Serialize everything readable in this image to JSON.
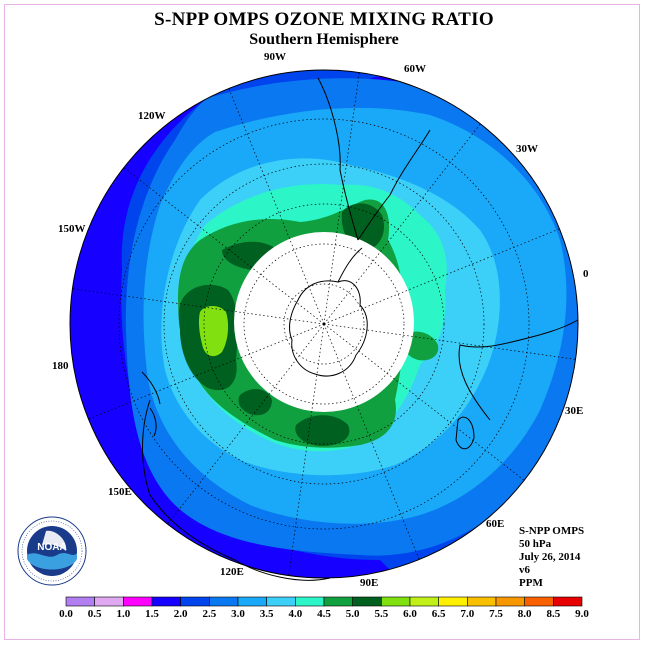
{
  "title": "S-NPP OMPS OZONE MIXING RATIO",
  "subtitle": "Southern Hemisphere",
  "longitude_labels": [
    "90W",
    "60W",
    "120W",
    "30W",
    "150W",
    "0",
    "180",
    "30E",
    "150E",
    "60E",
    "120E",
    "90E"
  ],
  "info": {
    "instrument": "S-NPP OMPS",
    "pressure": "50 hPa",
    "date": "July 26, 2014",
    "version": "v6",
    "units": "PPM"
  },
  "logo": {
    "text": "NOAA",
    "ring_text": "NATIONAL OCEANIC AND ATMOSPHERIC ADMINISTRATION U.S. DEPARTMENT OF COMMERCE"
  },
  "colorbar": {
    "labels": [
      "0.0",
      "0.5",
      "1.0",
      "1.5",
      "2.0",
      "2.5",
      "3.0",
      "3.5",
      "4.0",
      "4.5",
      "5.0",
      "5.5",
      "6.0",
      "6.5",
      "7.0",
      "7.5",
      "8.0",
      "8.5",
      "9.0"
    ],
    "colors": [
      "#b27ff0",
      "#e0a8f0",
      "#ff00ff",
      "#1600ff",
      "#0044ee",
      "#0a78f0",
      "#1aa8f8",
      "#3cd0f8",
      "#2cf5c8",
      "#10a040",
      "#006020",
      "#80e010",
      "#c0f018",
      "#fff000",
      "#f8c000",
      "#f89800",
      "#f86000",
      "#e80000",
      "#906040"
    ]
  },
  "map": {
    "colors": {
      "level_2_0": "#0044ee",
      "level_2_5": "#0a78f0",
      "level_3_0": "#1aa8f8",
      "level_3_5": "#3cd0f8",
      "level_4_0": "#2cf5c8",
      "level_4_5": "#10a040",
      "level_5_0": "#006020",
      "level_5_5": "#80e010",
      "level_1_5": "#1600ff",
      "no_data": "#ffffff"
    }
  }
}
